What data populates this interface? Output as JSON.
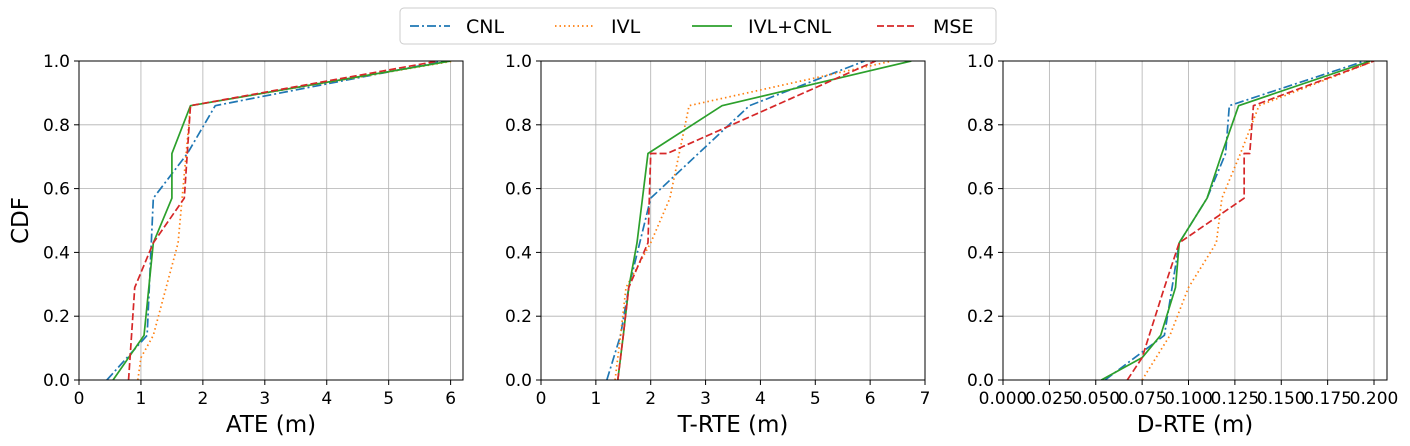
{
  "legend": {
    "placement": "top-center",
    "entries": [
      {
        "name": "CNL",
        "color": "#1f77b4",
        "dash": "dashdot"
      },
      {
        "name": "IVL",
        "color": "#ff7f0e",
        "dash": "dotted"
      },
      {
        "name": "IVL+CNL",
        "color": "#2ca02c",
        "dash": "solid"
      },
      {
        "name": "MSE",
        "color": "#d62728",
        "dash": "dashed"
      }
    ]
  },
  "chart_data": [
    {
      "type": "line",
      "xlabel": "ATE (m)",
      "ylabel": "CDF",
      "xlim": [
        0,
        6.2
      ],
      "ylim": [
        0,
        1
      ],
      "xticks": [
        "0",
        "1",
        "2",
        "3",
        "4",
        "5",
        "6"
      ],
      "xtick_values": [
        0,
        1,
        2,
        3,
        4,
        5,
        6
      ],
      "yticks": [
        "0.0",
        "0.2",
        "0.4",
        "0.6",
        "0.8",
        "1.0"
      ],
      "ytick_values": [
        0,
        0.2,
        0.4,
        0.6,
        0.8,
        1.0
      ],
      "grid": true,
      "series": [
        {
          "name": "CNL",
          "x": [
            0.45,
            1.1,
            1.2,
            1.75,
            2.2,
            5.9
          ],
          "y": [
            0,
            0.14,
            0.57,
            0.71,
            0.86,
            1.0
          ]
        },
        {
          "name": "IVL",
          "x": [
            0.95,
            1.0,
            1.2,
            1.6,
            1.8,
            6.05
          ],
          "y": [
            0,
            0.07,
            0.14,
            0.43,
            0.86,
            1.0
          ]
        },
        {
          "name": "IVL+CNL",
          "x": [
            0.55,
            1.05,
            1.2,
            1.5,
            1.5,
            1.8,
            6.0
          ],
          "y": [
            0,
            0.14,
            0.43,
            0.57,
            0.71,
            0.86,
            1.0
          ]
        },
        {
          "name": "MSE",
          "x": [
            0.8,
            0.9,
            1.2,
            1.7,
            1.8,
            5.8
          ],
          "y": [
            0,
            0.29,
            0.43,
            0.57,
            0.86,
            1.0
          ]
        }
      ]
    },
    {
      "type": "line",
      "xlabel": "T-RTE (m)",
      "ylabel": "",
      "xlim": [
        0,
        7
      ],
      "ylim": [
        0,
        1
      ],
      "xticks": [
        "0",
        "1",
        "2",
        "3",
        "4",
        "5",
        "6",
        "7"
      ],
      "xtick_values": [
        0,
        1,
        2,
        3,
        4,
        5,
        6,
        7
      ],
      "yticks": [
        "0.0",
        "0.2",
        "0.4",
        "0.6",
        "0.8",
        "1.0"
      ],
      "ytick_values": [
        0,
        0.2,
        0.4,
        0.6,
        0.8,
        1.0
      ],
      "grid": true,
      "series": [
        {
          "name": "CNL",
          "x": [
            1.2,
            1.45,
            1.6,
            2.0,
            3.8,
            5.9
          ],
          "y": [
            0,
            0.14,
            0.29,
            0.57,
            0.86,
            1.0
          ]
        },
        {
          "name": "IVL",
          "x": [
            1.35,
            1.45,
            1.55,
            2.0,
            2.35,
            2.7,
            6.4
          ],
          "y": [
            0,
            0.14,
            0.29,
            0.43,
            0.57,
            0.86,
            1.0
          ]
        },
        {
          "name": "IVL+CNL",
          "x": [
            1.4,
            1.5,
            1.6,
            1.75,
            1.85,
            1.95,
            3.3,
            6.75
          ],
          "y": [
            0,
            0.14,
            0.29,
            0.43,
            0.57,
            0.71,
            0.86,
            1.0
          ]
        },
        {
          "name": "MSE",
          "x": [
            1.4,
            1.5,
            1.6,
            1.95,
            2.0,
            2.3,
            6.1
          ],
          "y": [
            0,
            0.14,
            0.29,
            0.43,
            0.71,
            0.71,
            1.0
          ]
        }
      ]
    },
    {
      "type": "line",
      "xlabel": "D-RTE (m)",
      "ylabel": "",
      "xlim": [
        0,
        0.207
      ],
      "ylim": [
        0,
        1
      ],
      "xticks": [
        "0.000",
        "0.025",
        "0.050",
        "0.075",
        "0.100",
        "0.125",
        "0.150",
        "0.175",
        "0.200"
      ],
      "xtick_values": [
        0,
        0.025,
        0.05,
        0.075,
        0.1,
        0.125,
        0.15,
        0.175,
        0.2
      ],
      "yticks": [
        "0.0",
        "0.2",
        "0.4",
        "0.6",
        "0.8",
        "1.0"
      ],
      "ytick_values": [
        0,
        0.2,
        0.4,
        0.6,
        0.8,
        1.0
      ],
      "grid": true,
      "series": [
        {
          "name": "CNL",
          "x": [
            0.055,
            0.087,
            0.095,
            0.11,
            0.12,
            0.122,
            0.195
          ],
          "y": [
            0,
            0.14,
            0.43,
            0.57,
            0.71,
            0.86,
            1.0
          ]
        },
        {
          "name": "IVL",
          "x": [
            0.075,
            0.09,
            0.1,
            0.115,
            0.118,
            0.128,
            0.138,
            0.2
          ],
          "y": [
            0,
            0.14,
            0.29,
            0.43,
            0.57,
            0.71,
            0.86,
            1.0
          ]
        },
        {
          "name": "IVL+CNL",
          "x": [
            0.053,
            0.075,
            0.085,
            0.093,
            0.095,
            0.11,
            0.118,
            0.127,
            0.198
          ],
          "y": [
            0,
            0.07,
            0.14,
            0.29,
            0.43,
            0.57,
            0.71,
            0.86,
            1.0
          ]
        },
        {
          "name": "MSE",
          "x": [
            0.067,
            0.075,
            0.087,
            0.095,
            0.13,
            0.13,
            0.133,
            0.135,
            0.2
          ],
          "y": [
            0,
            0.07,
            0.29,
            0.43,
            0.57,
            0.71,
            0.71,
            0.86,
            1.0
          ]
        }
      ]
    }
  ]
}
